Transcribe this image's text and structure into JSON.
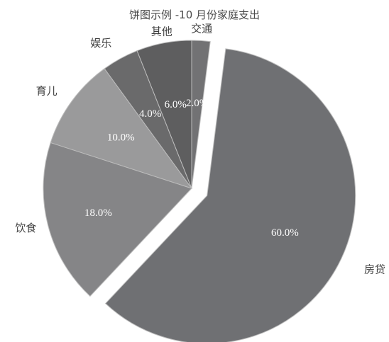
{
  "chart_data": {
    "type": "pie",
    "title": "饼图示例 -10 月份家庭支出",
    "categories": [
      "房贷",
      "饮食",
      "育儿",
      "娱乐",
      "其他",
      "交通"
    ],
    "values": [
      60.0,
      18.0,
      10.0,
      4.0,
      6.0,
      2.0
    ],
    "value_labels": [
      "60.0%",
      "18.0%",
      "10.0%",
      "4.0%",
      "6.0%",
      "2.0%"
    ],
    "colors": [
      "#6f7073",
      "#858587",
      "#9a9a9b",
      "#6a6a6b",
      "#5e5e5f",
      "#727274"
    ],
    "exploded": [
      "房贷"
    ],
    "legend": "none"
  }
}
